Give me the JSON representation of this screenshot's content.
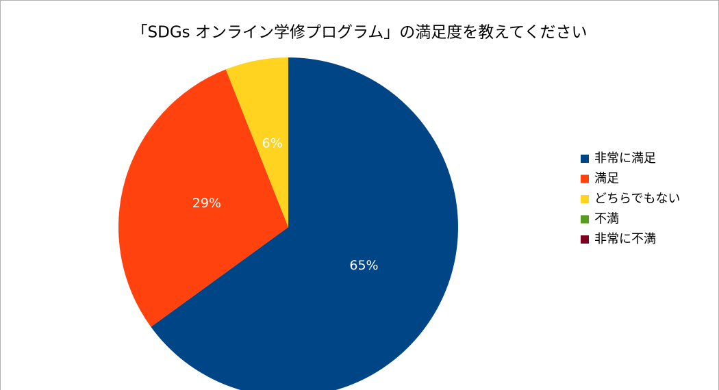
{
  "chart_data": {
    "type": "pie",
    "title": "「SDGs オンライン学修プログラム」の満足度を教えてください",
    "categories": [
      "非常に満足",
      "満足",
      "どちらでもない",
      "不満",
      "非常に不満"
    ],
    "values": [
      65,
      29,
      6,
      0,
      0
    ],
    "value_labels": [
      "65%",
      "29%",
      "6%",
      null,
      null
    ],
    "colors": [
      "#004586",
      "#ff420e",
      "#ffd320",
      "#579d1c",
      "#7e0021"
    ],
    "legend": "right"
  }
}
